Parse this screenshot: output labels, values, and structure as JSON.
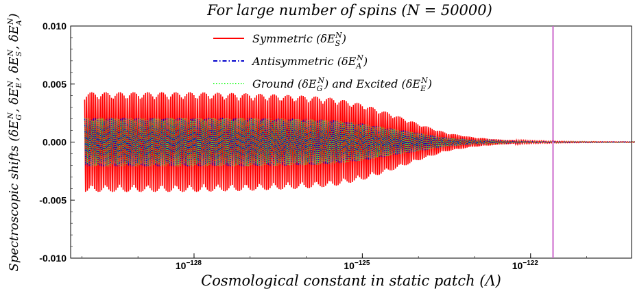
{
  "chart_data": {
    "type": "line",
    "title": "For large number of spins (N = 50000)",
    "xlabel": "Cosmological constant in static patch (Λ)",
    "ylabel": "Spectroscopic shifts (δE_G^N, δE_E^N, δE_S^N, δE_A^N)",
    "x_scale": "log10",
    "xlim_exponent": [
      -130.2,
      -120.2
    ],
    "ylim": [
      -0.01,
      0.01
    ],
    "x_ticks": [
      {
        "exponent": -128,
        "label_base": "10",
        "label_exp": "−128"
      },
      {
        "exponent": -125,
        "label_base": "10",
        "label_exp": "−125"
      },
      {
        "exponent": -122,
        "label_base": "10",
        "label_exp": "−122"
      }
    ],
    "y_ticks": [
      {
        "value": 0.01,
        "label": "0.010"
      },
      {
        "value": 0.005,
        "label": "0.005"
      },
      {
        "value": 0.0,
        "label": "0.000"
      },
      {
        "value": -0.005,
        "label": "-0.005"
      },
      {
        "value": -0.01,
        "label": "-0.010"
      }
    ],
    "vertical_line": {
      "exponent": -121.6,
      "color": "#cc66cc"
    },
    "series": [
      {
        "name": "Symmetric (δE_S^N)",
        "color": "#ff0000",
        "style": "solid",
        "envelope_exponent": [
          -130,
          -128,
          -127,
          -126,
          -125.5,
          -125,
          -124.5,
          -124,
          -123.5,
          -123,
          -122.5,
          -122,
          -121.5,
          -121,
          -120.5,
          -120.0
        ],
        "envelope_amplitude": [
          0.0043,
          0.0043,
          0.0042,
          0.004,
          0.0038,
          0.0033,
          0.0025,
          0.0016,
          0.0008,
          0.0004,
          0.0002,
          0.0001,
          6e-05,
          4e-05,
          3e-05,
          3e-05
        ]
      },
      {
        "name": "Antisymmetric (δE_A^N)",
        "color": "#0000cc",
        "style": "dashdot",
        "envelope_exponent": [
          -130,
          -128,
          -127,
          -126,
          -125.5,
          -125,
          -124.5,
          -124,
          -123.5,
          -123,
          -122.5,
          -122,
          -121.5,
          -121,
          -120.5,
          -120.0
        ],
        "envelope_amplitude": [
          0.0021,
          0.0021,
          0.0021,
          0.002,
          0.0019,
          0.0016,
          0.0012,
          0.0008,
          0.0004,
          0.0002,
          0.0001,
          5e-05,
          3e-05,
          2e-05,
          2e-05,
          2e-05
        ]
      },
      {
        "name": "Ground (δE_G^N) and Excited (δE_E^N)",
        "color": "#33ff33",
        "style": "dotted",
        "envelope_exponent": [
          -130,
          -128,
          -127,
          -126,
          -125.5,
          -125,
          -124.5,
          -124,
          -123.5,
          -123,
          -122.5,
          -122,
          -121.5,
          -121,
          -120.5,
          -120.0
        ],
        "envelope_amplitude": [
          0.0021,
          0.0021,
          0.0021,
          0.002,
          0.0019,
          0.0016,
          0.0012,
          0.0008,
          0.0004,
          0.0002,
          0.0001,
          5e-05,
          3e-05,
          2e-05,
          2e-05,
          2e-05
        ]
      }
    ],
    "legend": {
      "placement": "top-center",
      "entries": [
        {
          "text": "Symmetric",
          "sym_base": "δE",
          "sym_sub": "S",
          "sym_sup": "N"
        },
        {
          "text": "Antisymmetric",
          "sym_base": "δE",
          "sym_sub": "A",
          "sym_sup": "N"
        },
        {
          "text": "Ground",
          "sym_base": "δE",
          "sym_sub": "G",
          "sym_sup": "N",
          "text2": "and Excited",
          "sym2_base": "δE",
          "sym2_sub": "E",
          "sym2_sup": "N"
        }
      ]
    },
    "grid": false
  }
}
